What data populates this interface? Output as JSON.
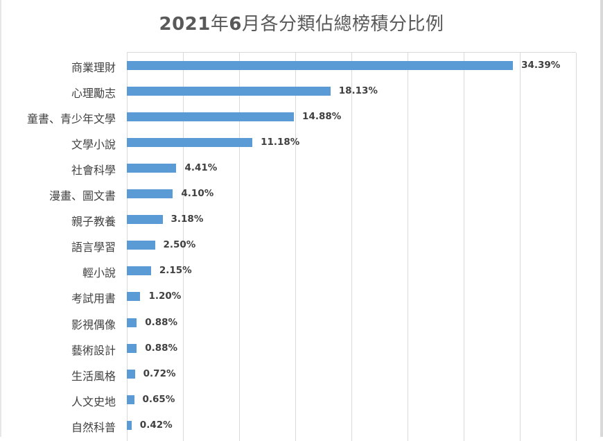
{
  "chart_data": {
    "type": "bar",
    "orientation": "horizontal",
    "title": "2021年6月各分類佔總榜積分比例",
    "xlabel": "",
    "ylabel": "",
    "xlim": [
      0,
      40
    ],
    "x_tick_step": 5,
    "grid": true,
    "legend": null,
    "bar_color": "#5b9bd5",
    "categories": [
      "商業理財",
      "心理勵志",
      "童書、青少年文學",
      "文學小說",
      "社會科學",
      "漫畫、圖文書",
      "親子教養",
      "語言學習",
      "輕小說",
      "考試用書",
      "影視偶像",
      "藝術設計",
      "生活風格",
      "人文史地",
      "自然科普"
    ],
    "values": [
      34.39,
      18.13,
      14.88,
      11.18,
      4.41,
      4.1,
      3.18,
      2.5,
      2.15,
      1.2,
      0.88,
      0.88,
      0.72,
      0.65,
      0.42
    ],
    "labels": [
      "34.39%",
      "18.13%",
      "14.88%",
      "11.18%",
      "4.41%",
      "4.10%",
      "3.18%",
      "2.50%",
      "2.15%",
      "1.20%",
      "0.88%",
      "0.88%",
      "0.72%",
      "0.65%",
      "0.42%"
    ]
  },
  "title": {
    "year": "2021",
    "mid1": "年",
    "month": "6",
    "rest": "月各分類佔總榜積分比例"
  }
}
